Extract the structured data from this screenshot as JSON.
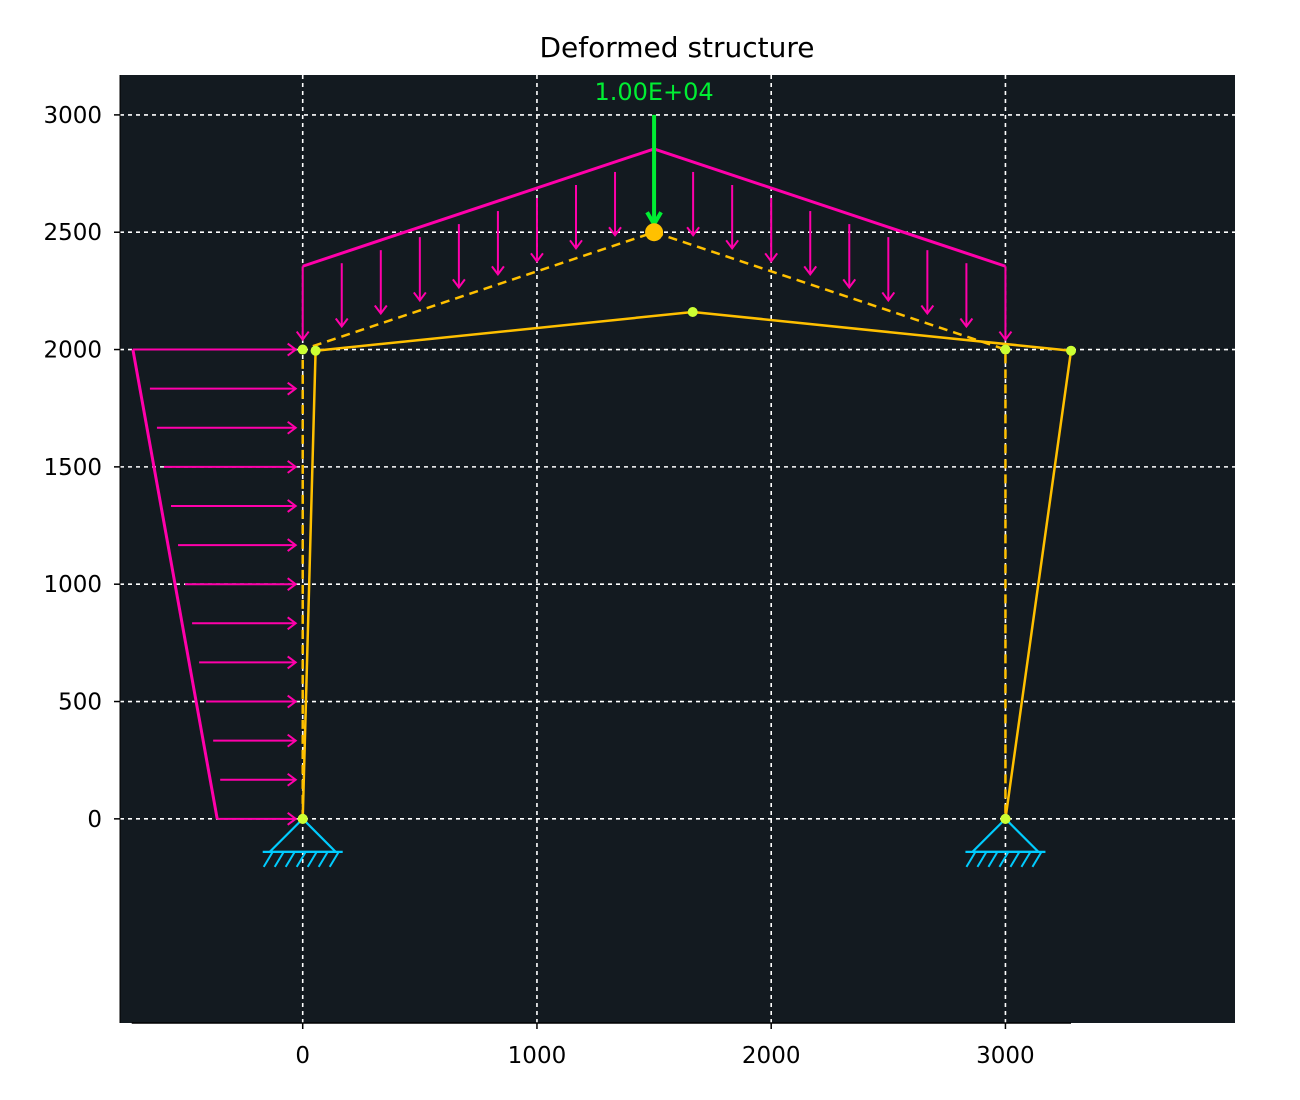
{
  "title": "Deformed structure",
  "colors": {
    "background": "#131a20",
    "grid": "#ffffff",
    "undeformed": "#ffc000",
    "deformed": "#ffc000",
    "node": "#ccff33",
    "distributed_load": "#ff00aa",
    "point_load": "#00ee33",
    "support": "#00ccff"
  },
  "chart_data": {
    "type": "structural-frame",
    "title": "Deformed structure",
    "xlim": [
      -780,
      3980
    ],
    "ylim": [
      -870,
      3170
    ],
    "x_ticks": [
      0,
      1000,
      2000,
      3000
    ],
    "y_ticks": [
      0,
      500,
      1000,
      1500,
      2000,
      2500,
      3000
    ],
    "x_tick_labels": [
      "0",
      "1000",
      "2000",
      "3000"
    ],
    "y_tick_labels": [
      "0",
      "500",
      "1000",
      "1500",
      "2000",
      "2500",
      "3000"
    ],
    "grid": true,
    "undeformed_nodes": [
      {
        "x": 0,
        "y": 0
      },
      {
        "x": 0,
        "y": 2000
      },
      {
        "x": 1500,
        "y": 2500
      },
      {
        "x": 3000,
        "y": 2000
      },
      {
        "x": 3000,
        "y": 0
      }
    ],
    "deformed_nodes": [
      {
        "x": 0,
        "y": 0
      },
      {
        "x": 55,
        "y": 1995
      },
      {
        "x": 1665,
        "y": 2160
      },
      {
        "x": 3280,
        "y": 1995
      },
      {
        "x": 3000,
        "y": 0
      }
    ],
    "supports": [
      {
        "x": 0,
        "y": 0,
        "type": "pinned"
      },
      {
        "x": 3000,
        "y": 0,
        "type": "pinned"
      }
    ],
    "point_load": {
      "x": 1500,
      "y": 2500,
      "tail_y": 3000,
      "label": "1.00E+04"
    },
    "roof_load": {
      "start": {
        "x": 0,
        "y": 2355
      },
      "peak": {
        "x": 1500,
        "y": 2855
      },
      "end": {
        "x": 3000,
        "y": 2355
      },
      "arrow_count": 19
    },
    "wall_load": {
      "top": {
        "x": -725,
        "y": 2000
      },
      "bottom": {
        "x": -365,
        "y": 0
      },
      "arrow_count": 13
    }
  }
}
